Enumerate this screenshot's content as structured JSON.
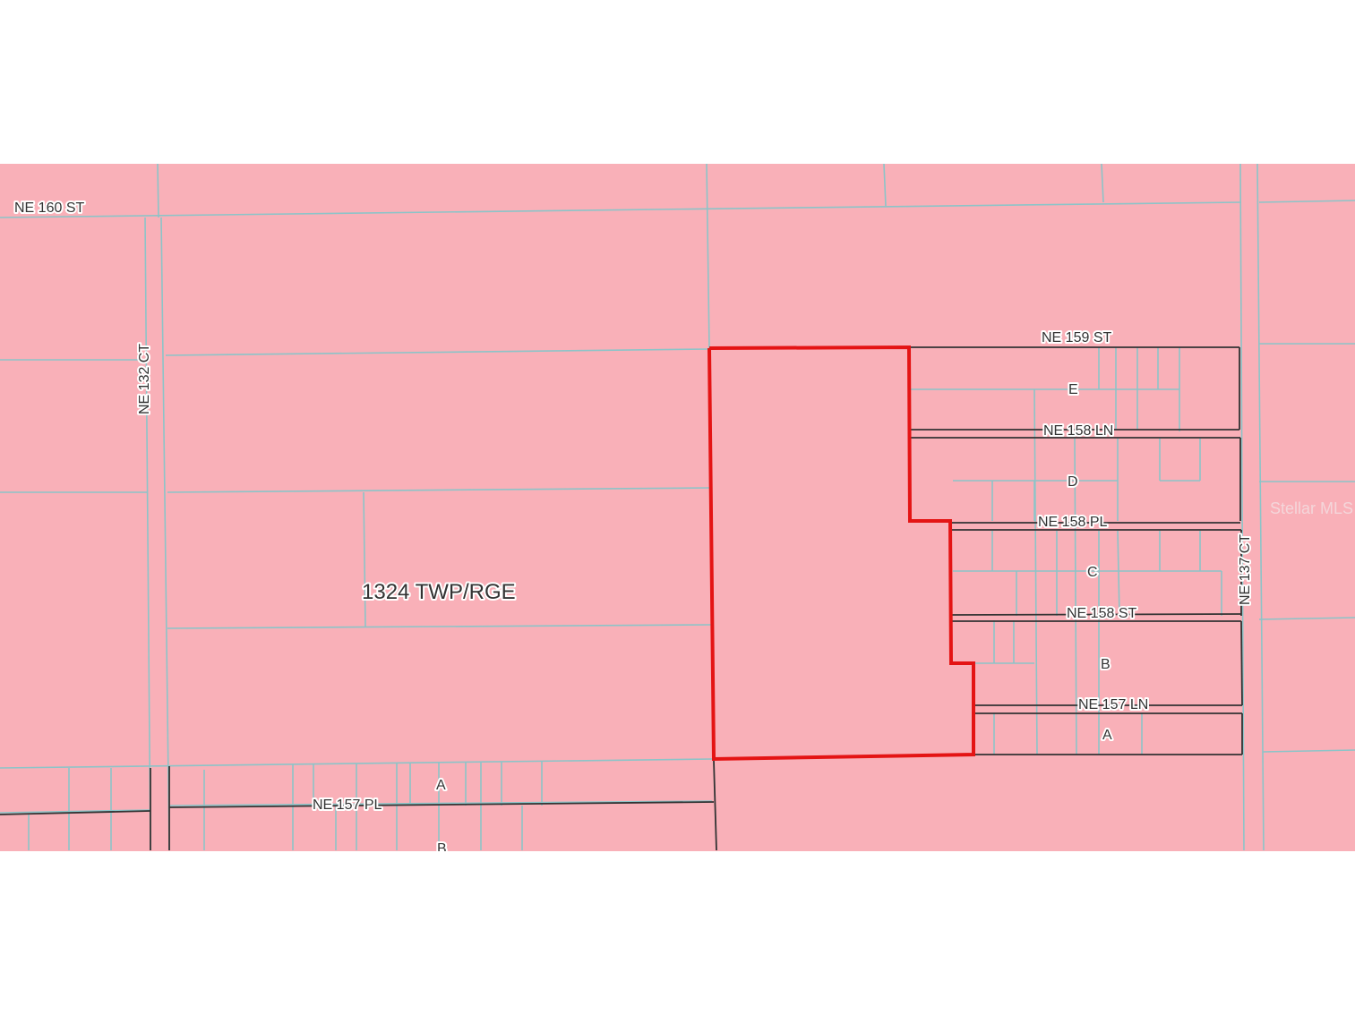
{
  "map": {
    "colors": {
      "parcel_fill": "#f9b0b8",
      "parcel_line": "#8cc4c8",
      "subdivision_line": "#333333",
      "subject_outline": "#e41414"
    },
    "area_label": "1324 TWP/RGE",
    "streets": {
      "ne_160_st": "NE 160 ST",
      "ne_132_ct": "NE 132 CT",
      "ne_159_st": "NE 159 ST",
      "ne_158_ln": "NE 158 LN",
      "ne_158_pl": "NE 158 PL",
      "ne_158_st": "NE 158 ST",
      "ne_157_ln": "NE 157 LN",
      "ne_157_pl": "NE 157 PL",
      "ne_137_ct": "NE 137 CT"
    },
    "blocks": {
      "e": "E",
      "d": "D",
      "c": "C",
      "b": "B",
      "a_east": "A",
      "a_west": "A",
      "b_west": "B"
    },
    "watermark": "Stellar MLS"
  }
}
